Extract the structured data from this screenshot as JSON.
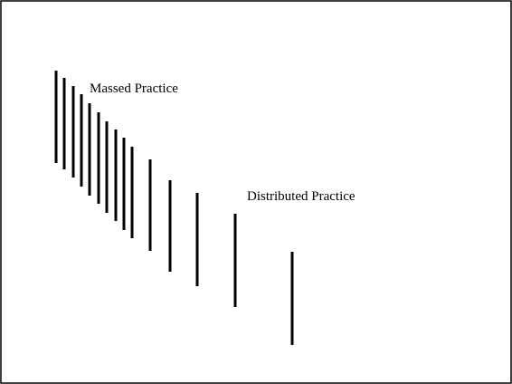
{
  "diagram": {
    "massed_label": "Massed Practice",
    "distributed_label": "Distributed Practice",
    "stroke_color": "#000000",
    "background_color": "#ffffff",
    "massed_bar_count": 10,
    "distributed_bar_count": 5
  }
}
